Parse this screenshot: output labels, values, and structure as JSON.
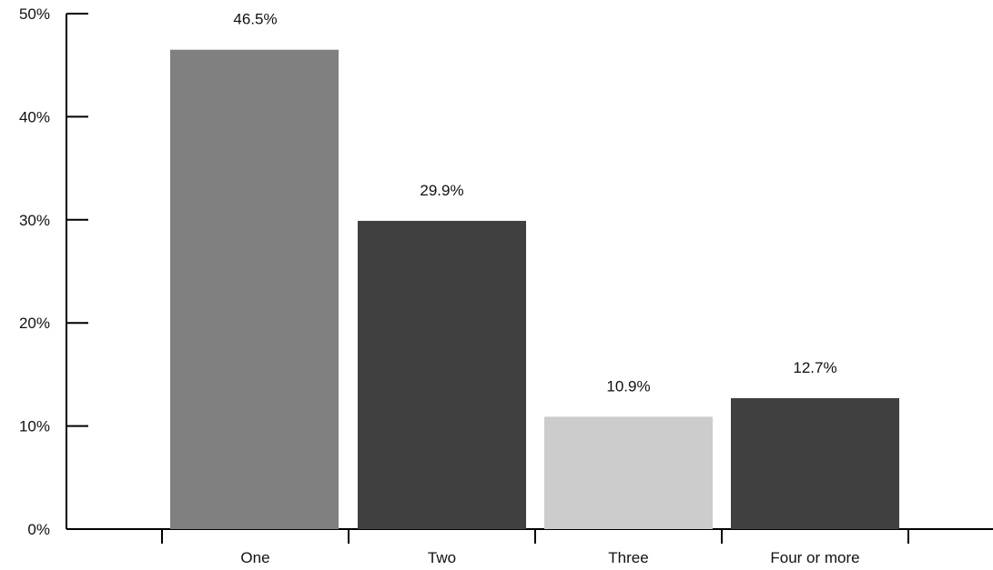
{
  "chart_data": {
    "type": "bar",
    "categories": [
      "One",
      "Two",
      "Three",
      "Four or more"
    ],
    "values": [
      46.5,
      29.9,
      10.9,
      12.7
    ],
    "data_labels": [
      "46.5%",
      "29.9%",
      "10.9%",
      "12.7%"
    ],
    "colors": [
      "#808080",
      "#404040",
      "#cccccc",
      "#404040"
    ],
    "title": "",
    "xlabel": "",
    "ylabel": "",
    "ylim": [
      0,
      50
    ],
    "yticks": [
      0,
      10,
      20,
      30,
      40,
      50
    ],
    "ytick_labels": [
      "0%",
      "10%",
      "20%",
      "30%",
      "40%",
      "50%"
    ],
    "grid": false,
    "legend": "none"
  }
}
